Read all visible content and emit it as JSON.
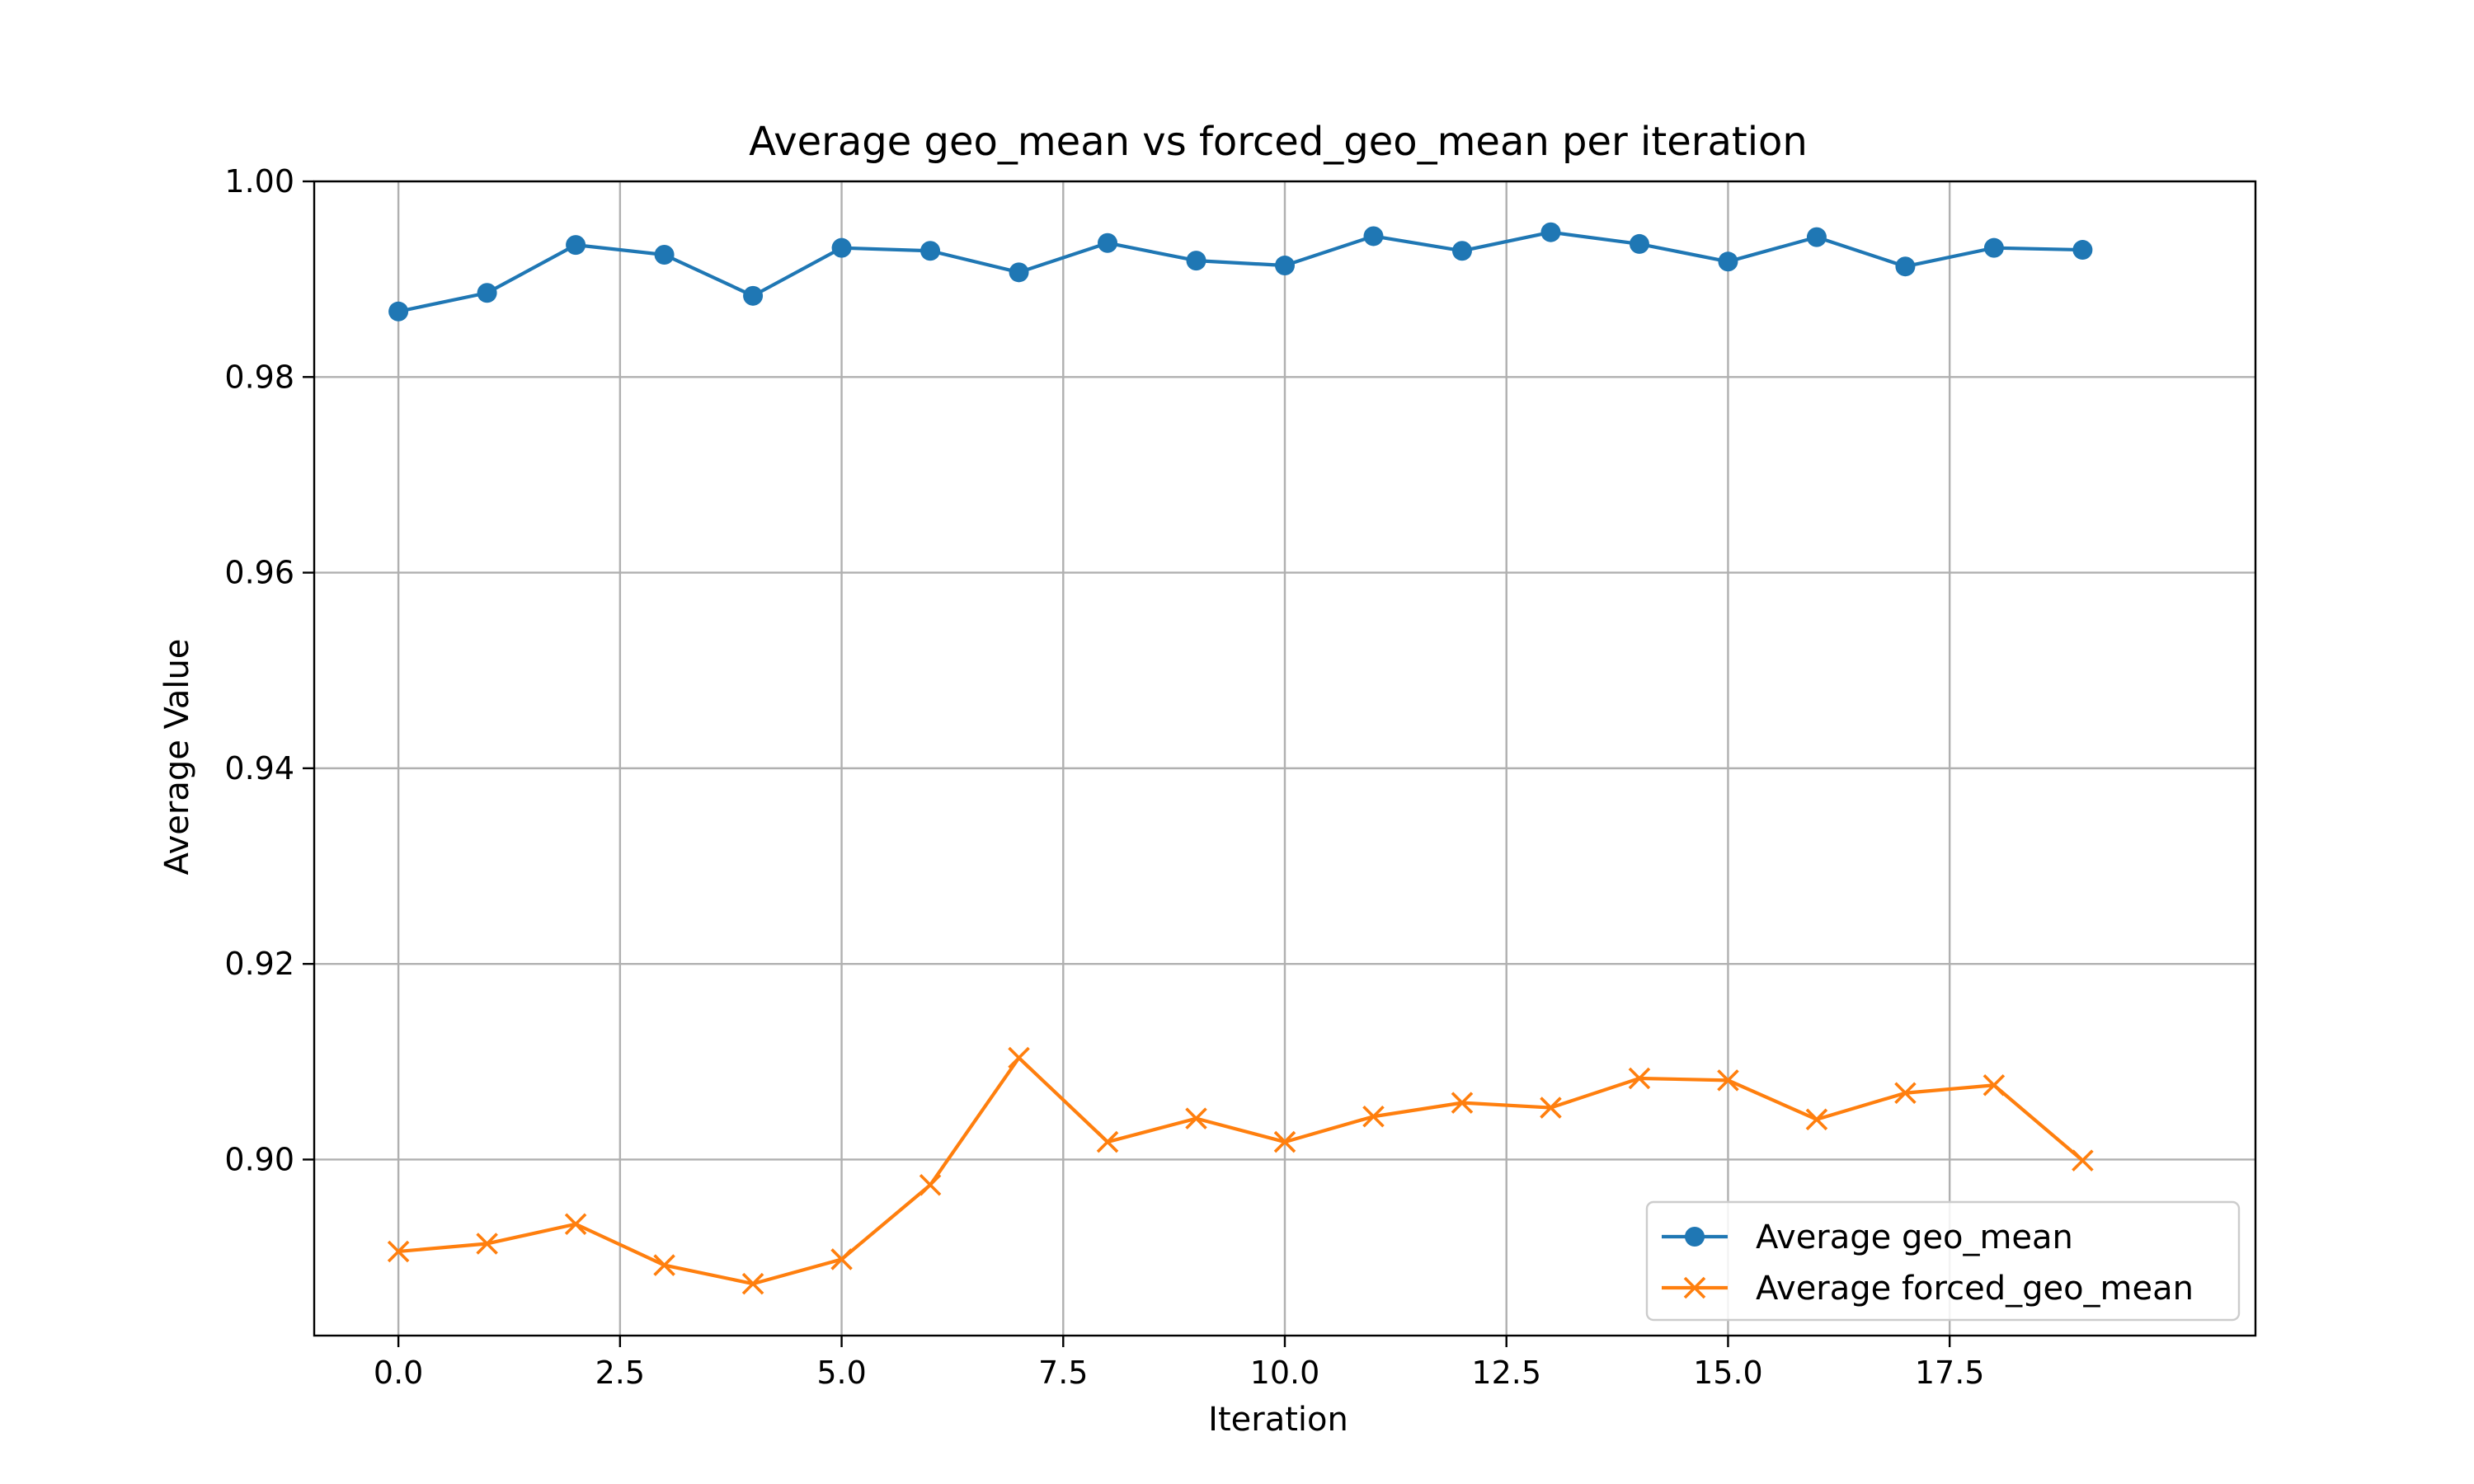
{
  "chart_data": {
    "type": "line",
    "title": "Average geo_mean vs forced_geo_mean per iteration",
    "xlabel": "Iteration",
    "ylabel": "Average Value",
    "xlim": [
      -0.95,
      20.95
    ],
    "ylim": [
      0.882,
      1.0
    ],
    "xticks": [
      0,
      2.5,
      5,
      7.5,
      10,
      12.5,
      15,
      17.5
    ],
    "xtick_labels": [
      "0.0",
      "2.5",
      "5.0",
      "7.5",
      "10.0",
      "12.5",
      "15.0",
      "17.5"
    ],
    "yticks": [
      0.9,
      0.92,
      0.94,
      0.96,
      0.98,
      1.0
    ],
    "ytick_labels": [
      "0.90",
      "0.92",
      "0.94",
      "0.96",
      "0.98",
      "1.00"
    ],
    "grid": true,
    "legend_position": "lower-right",
    "x": [
      0,
      1,
      2,
      3,
      4,
      5,
      6,
      7,
      8,
      9,
      10,
      11,
      12,
      13,
      14,
      15,
      16,
      17,
      18,
      19
    ],
    "series": [
      {
        "name": "Average geo_mean",
        "color": "#1f77b4",
        "marker": "circle",
        "values": [
          0.9867,
          0.9886,
          0.9935,
          0.9925,
          0.9883,
          0.9932,
          0.9929,
          0.9907,
          0.9937,
          0.9919,
          0.9914,
          0.9944,
          0.9929,
          0.9948,
          0.9936,
          0.9918,
          0.9943,
          0.9913,
          0.9932,
          0.993
        ]
      },
      {
        "name": "Average forced_geo_mean",
        "color": "#ff7f0e",
        "marker": "x",
        "values": [
          0.8906,
          0.8914,
          0.8934,
          0.8892,
          0.8873,
          0.8898,
          0.8974,
          0.9104,
          0.9018,
          0.9042,
          0.9018,
          0.9044,
          0.9058,
          0.9053,
          0.9083,
          0.9081,
          0.9041,
          0.9068,
          0.9076,
          0.8999
        ]
      }
    ]
  }
}
